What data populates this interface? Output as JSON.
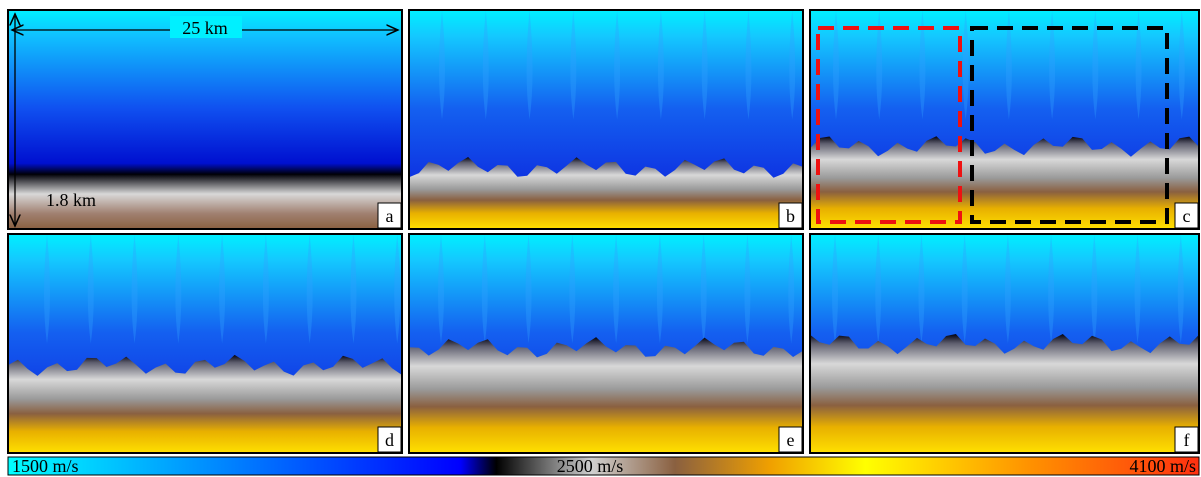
{
  "annotations": {
    "width": "25 km",
    "depth": "1.8 km"
  },
  "panels": [
    {
      "label": "a"
    },
    {
      "label": "b"
    },
    {
      "label": "c"
    },
    {
      "label": "d"
    },
    {
      "label": "e"
    },
    {
      "label": "f"
    }
  ],
  "colorbar": {
    "labels": [
      "1500 m/s",
      "2500 m/s",
      "4100 m/s"
    ]
  }
}
